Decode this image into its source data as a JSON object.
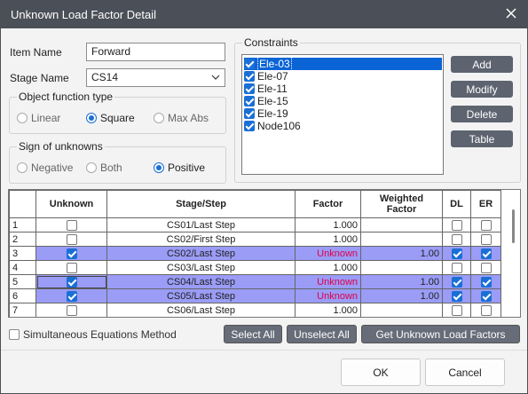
{
  "window": {
    "title": "Unknown Load Factor Detail"
  },
  "item_name": {
    "label": "Item Name",
    "value": "Forward"
  },
  "stage_name": {
    "label": "Stage Name",
    "value": "CS14"
  },
  "object_function": {
    "label": "Object function type",
    "options": [
      "Linear",
      "Square",
      "Max Abs"
    ],
    "selected": "Square"
  },
  "sign": {
    "label": "Sign of unknowns",
    "options": [
      "Negative",
      "Both",
      "Positive"
    ],
    "selected": "Positive"
  },
  "constraints": {
    "label": "Constraints",
    "items": [
      {
        "name": "Ele-03",
        "checked": true,
        "selected": true
      },
      {
        "name": "Ele-07",
        "checked": true,
        "selected": false
      },
      {
        "name": "Ele-11",
        "checked": true,
        "selected": false
      },
      {
        "name": "Ele-15",
        "checked": true,
        "selected": false
      },
      {
        "name": "Ele-19",
        "checked": true,
        "selected": false
      },
      {
        "name": "Node106",
        "checked": true,
        "selected": false
      }
    ],
    "buttons": {
      "add": "Add",
      "modify": "Modify",
      "delete": "Delete",
      "table": "Table"
    }
  },
  "table": {
    "headers": {
      "unknown": "Unknown",
      "stage": "Stage/Step",
      "factor": "Factor",
      "weighted_1": "Weighted",
      "weighted_2": "Factor",
      "dl": "DL",
      "er": "ER"
    },
    "rows": [
      {
        "n": "1",
        "unknown": false,
        "stage": "CS01/Last Step",
        "factor": "1.000",
        "weighted": "",
        "dl": false,
        "er": false,
        "hl": false
      },
      {
        "n": "2",
        "unknown": false,
        "stage": "CS02/First Step",
        "factor": "1.000",
        "weighted": "",
        "dl": false,
        "er": false,
        "hl": false
      },
      {
        "n": "3",
        "unknown": true,
        "stage": "CS02/Last Step",
        "factor": "Unknown",
        "weighted": "1.00",
        "dl": true,
        "er": true,
        "hl": true
      },
      {
        "n": "4",
        "unknown": false,
        "stage": "CS03/Last Step",
        "factor": "1.000",
        "weighted": "",
        "dl": false,
        "er": false,
        "hl": false
      },
      {
        "n": "5",
        "unknown": true,
        "stage": "CS04/Last Step",
        "factor": "Unknown",
        "weighted": "1.00",
        "dl": true,
        "er": true,
        "hl": true
      },
      {
        "n": "6",
        "unknown": true,
        "stage": "CS05/Last Step",
        "factor": "Unknown",
        "weighted": "1.00",
        "dl": true,
        "er": true,
        "hl": true
      },
      {
        "n": "7",
        "unknown": false,
        "stage": "CS06/Last Step",
        "factor": "1.000",
        "weighted": "",
        "dl": false,
        "er": false,
        "hl": false
      }
    ]
  },
  "simultaneous": {
    "label": "Simultaneous Equations Method",
    "checked": false
  },
  "actions": {
    "select_all": "Select All",
    "unselect_all": "Unselect All",
    "get_factors": "Get Unknown Load Factors"
  },
  "footer": {
    "ok": "OK",
    "cancel": "Cancel"
  },
  "colors": {
    "titlebar": "#4b4f57",
    "highlight_row": "#9a9cf6",
    "unknown_text": "#e0004a",
    "accent": "#1a6fd6"
  }
}
